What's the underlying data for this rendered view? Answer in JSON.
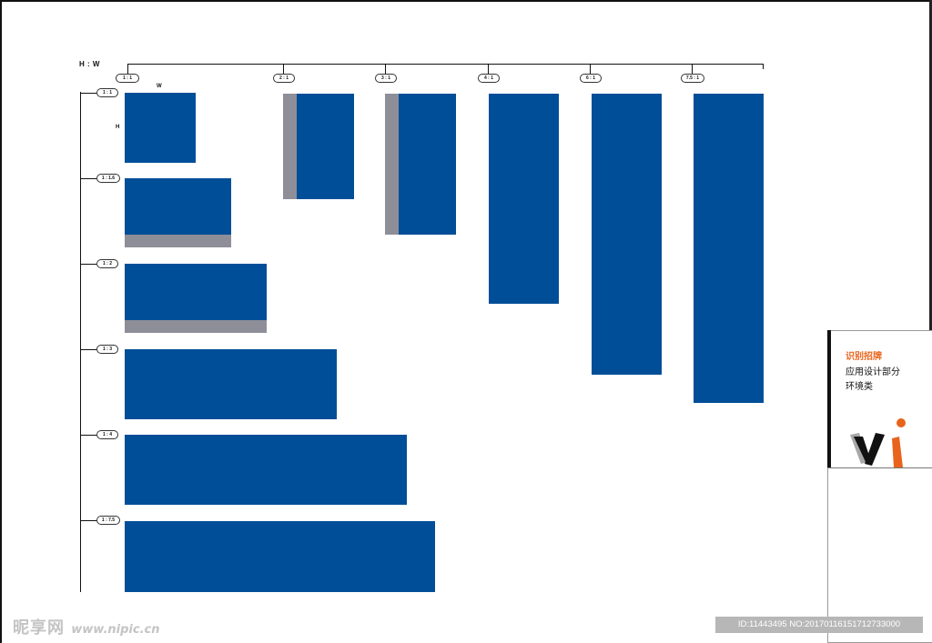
{
  "diagram": {
    "title": "H : W",
    "w_label": "W",
    "h_label": "H",
    "top_ratios": [
      "1 : 1",
      "2 : 1",
      "3 : 1",
      "4 : 1",
      "6 : 1",
      "7.5 : 1"
    ],
    "left_ratios": [
      "1 : 1",
      "1 : 1.6",
      "1 : 2",
      "1 : 3",
      "1 : 4",
      "1 : 7.5"
    ],
    "colors": {
      "sign_blue": "#004e98",
      "return_grey": "#8e8e98"
    }
  },
  "panel": {
    "line1": "识别招牌",
    "line2": "应用设计部分",
    "line3": "环境类",
    "logo_text": "vi",
    "accent": "#e8641c"
  },
  "watermark": {
    "site_cn": "昵享网",
    "site_url": "www.nipic.cn",
    "id_text": "ID:11443495 NO:20170116151712733000"
  }
}
